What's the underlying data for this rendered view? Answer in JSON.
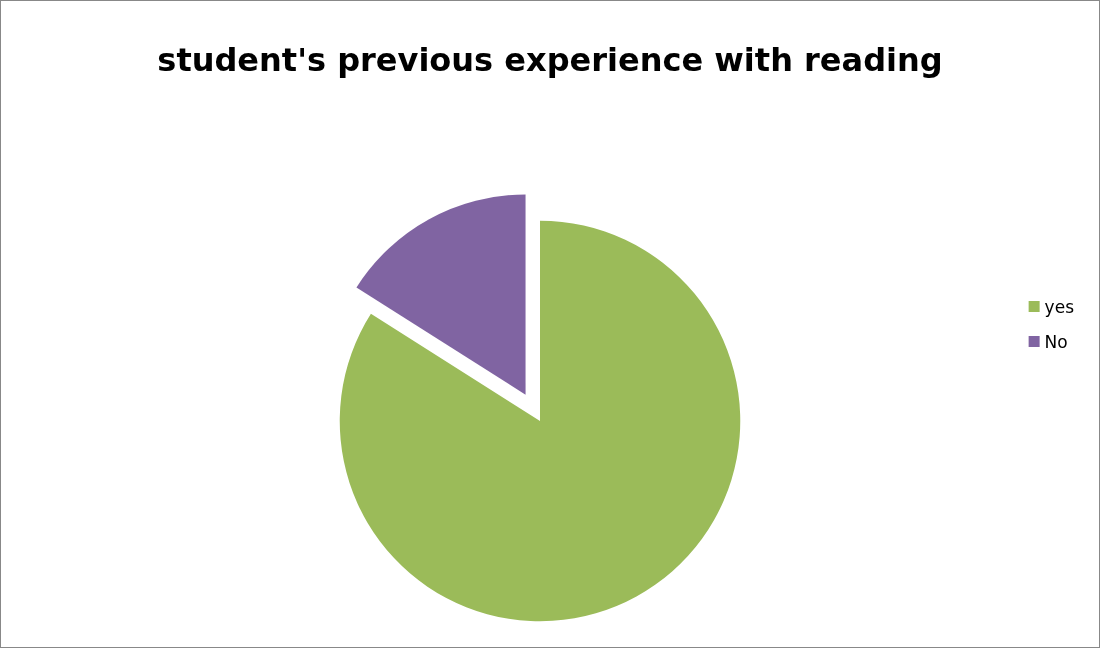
{
  "chart_data": {
    "type": "pie",
    "title": "student's previous experience with reading",
    "categories": [
      "yes",
      "No"
    ],
    "values": [
      84,
      16
    ],
    "colors": [
      "#9bbb59",
      "#8064a2"
    ],
    "legend": "right"
  }
}
